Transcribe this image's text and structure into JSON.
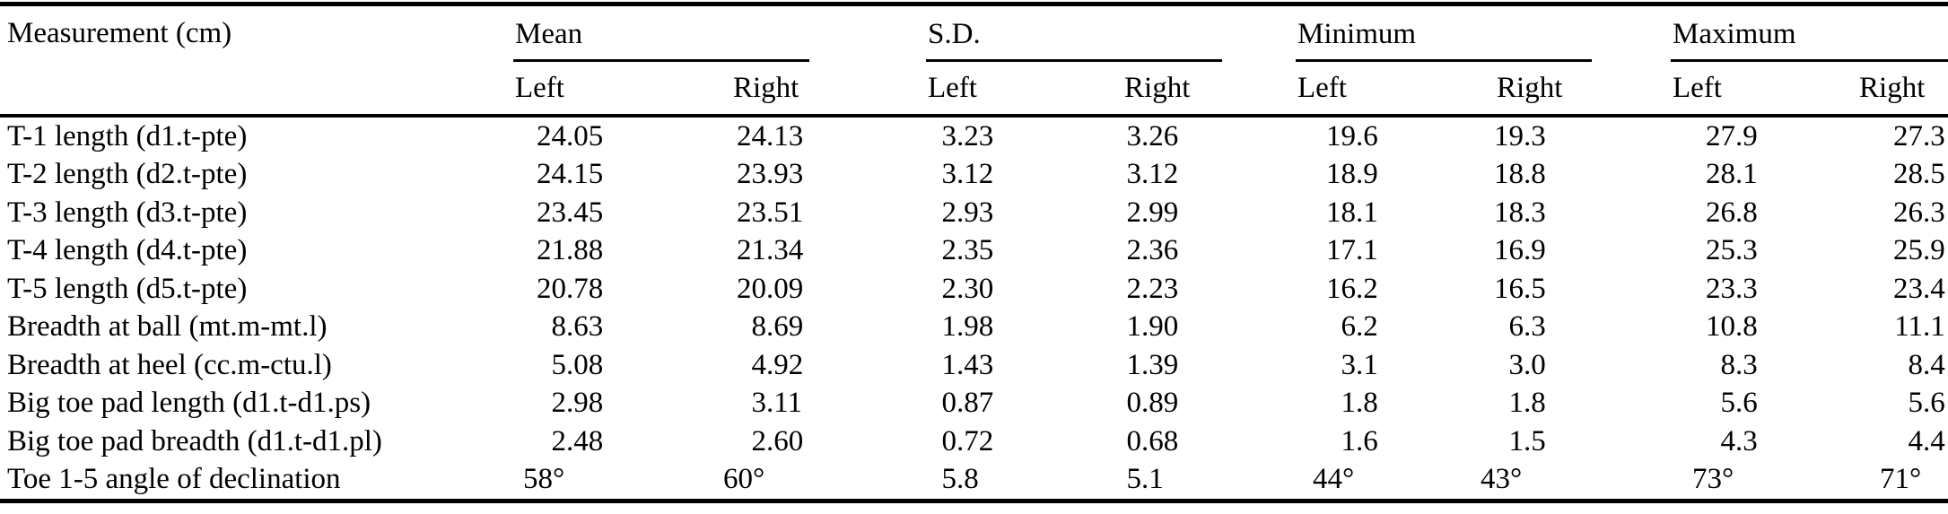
{
  "page": {
    "background_color": "#ffffff",
    "text_color": "#000000"
  },
  "table": {
    "measurement_header": "Measurement (cm)",
    "column_groups": [
      {
        "label": "Mean",
        "subcolumns": [
          "Left",
          "Right"
        ]
      },
      {
        "label": "S.D.",
        "subcolumns": [
          "Left",
          "Right"
        ]
      },
      {
        "label": "Minimum",
        "subcolumns": [
          "Left",
          "Right"
        ]
      },
      {
        "label": "Maximum",
        "subcolumns": [
          "Left",
          "Right"
        ]
      }
    ],
    "rows": [
      {
        "label": "T-1 length (d1.t-pte)",
        "values": [
          "24.05",
          "24.13",
          "3.23",
          "3.26",
          "19.6",
          "19.3",
          "27.9",
          "27.3"
        ]
      },
      {
        "label": "T-2 length (d2.t-pte)",
        "values": [
          "24.15",
          "23.93",
          "3.12",
          "3.12",
          "18.9",
          "18.8",
          "28.1",
          "28.5"
        ]
      },
      {
        "label": "T-3 length (d3.t-pte)",
        "values": [
          "23.45",
          "23.51",
          "2.93",
          "2.99",
          "18.1",
          "18.3",
          "26.8",
          "26.3"
        ]
      },
      {
        "label": "T-4 length (d4.t-pte)",
        "values": [
          "21.88",
          "21.34",
          "2.35",
          "2.36",
          "17.1",
          "16.9",
          "25.3",
          "25.9"
        ]
      },
      {
        "label": "T-5 length (d5.t-pte)",
        "values": [
          "20.78",
          "20.09",
          "2.30",
          "2.23",
          "16.2",
          "16.5",
          "23.3",
          "23.4"
        ]
      },
      {
        "label": "Breadth at ball (mt.m-mt.l)",
        "values": [
          "8.63",
          "8.69",
          "1.98",
          "1.90",
          "6.2",
          "6.3",
          "10.8",
          "11.1"
        ]
      },
      {
        "label": "Breadth at heel (cc.m-ctu.l)",
        "values": [
          "5.08",
          "4.92",
          "1.43",
          "1.39",
          "3.1",
          "3.0",
          "8.3",
          "8.4"
        ]
      },
      {
        "label": "Big toe pad length (d1.t-d1.ps)",
        "values": [
          "2.98",
          "3.11",
          "0.87",
          "0.89",
          "1.8",
          "1.8",
          "5.6",
          "5.6"
        ]
      },
      {
        "label": "Big toe pad breadth (d1.t-d1.pl)",
        "values": [
          "2.48",
          "2.60",
          "0.72",
          "0.68",
          "1.6",
          "1.5",
          "4.3",
          "4.4"
        ]
      },
      {
        "label": "Toe 1-5 angle of declination",
        "values": [
          "58°",
          "60°",
          "5.8",
          "5.1",
          "44°",
          "43°",
          "73°",
          "71°"
        ]
      }
    ]
  }
}
